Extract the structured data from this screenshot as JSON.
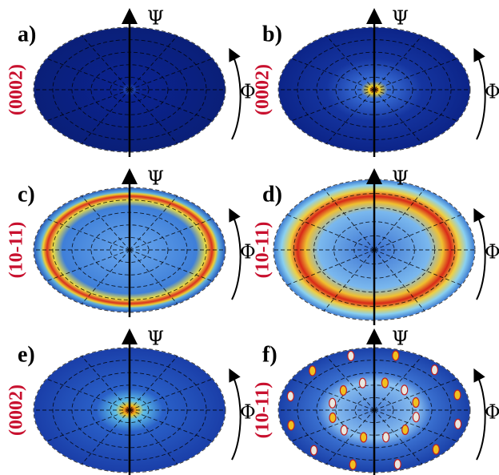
{
  "panels": [
    {
      "label": "a)",
      "plane": "(0002)",
      "psi": "Ψ",
      "phi": "Φ"
    },
    {
      "label": "b)",
      "plane": "(0002)",
      "psi": "Ψ",
      "phi": "Φ"
    },
    {
      "label": "c)",
      "plane": "(10-11)",
      "psi": "Ψ",
      "phi": "Φ"
    },
    {
      "label": "d)",
      "plane": "(10-11)",
      "psi": "Ψ",
      "phi": "Φ"
    },
    {
      "label": "e)",
      "plane": "(0002)",
      "psi": "Ψ",
      "phi": "Φ"
    },
    {
      "label": "f)",
      "plane": "(10-11)",
      "psi": "Ψ",
      "phi": "Φ"
    }
  ]
}
